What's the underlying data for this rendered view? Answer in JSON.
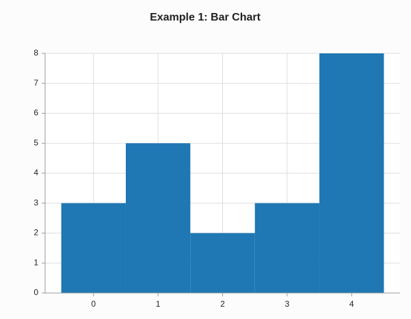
{
  "chart_data": {
    "type": "bar",
    "title": "Example 1: Bar Chart",
    "categories": [
      "0",
      "1",
      "2",
      "3",
      "4"
    ],
    "values": [
      3,
      5,
      2,
      3,
      8
    ],
    "color": "#1f77b4",
    "ylim": [
      0,
      8
    ],
    "yticks": [
      0,
      1,
      2,
      3,
      4,
      5,
      6,
      7,
      8
    ],
    "grid": true
  }
}
